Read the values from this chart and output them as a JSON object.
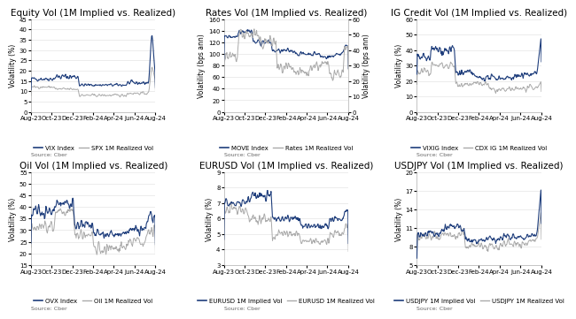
{
  "titles": [
    "Equity Vol (1M Implied vs. Realized)",
    "Rates Vol (1M Implied vs. Realized)",
    "IG Credit Vol (1M Implied vs. Realized)",
    "Oil Vol (1M Implied vs. Realized)",
    "EURUSD Vol (1M Implied vs. Realized)",
    "USDJPY Vol (1M Implied vs. Realized)"
  ],
  "ylabels_left": [
    "Volatility (%)",
    "Volatility (bps ann)",
    "Volatility (%)",
    "Volatility (%)",
    "Volatility (%)",
    "Volatility (%)"
  ],
  "ylabels_right": [
    null,
    "Volatility (bps ann)",
    null,
    null,
    null,
    null
  ],
  "legends": [
    [
      "VIX Index",
      "SPX 1M Realized Vol"
    ],
    [
      "MOVE Index",
      "Rates 1M Realized Vol"
    ],
    [
      "VIXIG Index",
      "CDX IG 1M Realized Vol"
    ],
    [
      "OVX Index",
      "Oil 1M Realized Vol"
    ],
    [
      "EURUSD 1M Implied Vol",
      "EURUSD 1M Realized Vol"
    ],
    [
      "USDJPY 1M Implied Vol",
      "USDJPY 1M Realized Vol"
    ]
  ],
  "source_text": "Source: Cber",
  "x_ticks": [
    "Aug-23",
    "Oct-23",
    "Dec-23",
    "Feb-24",
    "Apr-24",
    "Jun-24",
    "Aug-24"
  ],
  "title_fontsize": 7.5,
  "label_fontsize": 5.5,
  "tick_fontsize": 5,
  "legend_fontsize": 5,
  "source_fontsize": 4.5,
  "line_color_implied": "#1f3e7c",
  "line_color_realized": "#aaaaaa",
  "background_color": "#ffffff",
  "grid_color": "#dddddd",
  "n_points": 260
}
